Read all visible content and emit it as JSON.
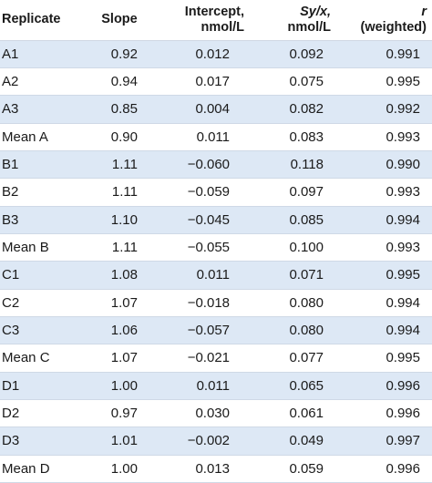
{
  "table": {
    "headers": {
      "replicate": "Replicate",
      "slope": "Slope",
      "intercept_line1": "Intercept,",
      "intercept_line2": "nmol/L",
      "syx_line1": "Sy/x,",
      "syx_line2": "nmol/L",
      "r_line1": "r",
      "r_line2": "(weighted)"
    },
    "rows": [
      {
        "replicate": "A1",
        "slope": "0.92",
        "intercept": "0.012",
        "syx": "0.092",
        "r": "0.991"
      },
      {
        "replicate": "A2",
        "slope": "0.94",
        "intercept": "0.017",
        "syx": "0.075",
        "r": "0.995"
      },
      {
        "replicate": "A3",
        "slope": "0.85",
        "intercept": "0.004",
        "syx": "0.082",
        "r": "0.992"
      },
      {
        "replicate": "Mean A",
        "slope": "0.90",
        "intercept": "0.011",
        "syx": "0.083",
        "r": "0.993"
      },
      {
        "replicate": "B1",
        "slope": "1.11",
        "intercept": "−0.060",
        "syx": "0.118",
        "r": "0.990"
      },
      {
        "replicate": "B2",
        "slope": "1.11",
        "intercept": "−0.059",
        "syx": "0.097",
        "r": "0.993"
      },
      {
        "replicate": "B3",
        "slope": "1.10",
        "intercept": "−0.045",
        "syx": "0.085",
        "r": "0.994"
      },
      {
        "replicate": "Mean B",
        "slope": "1.11",
        "intercept": "−0.055",
        "syx": "0.100",
        "r": "0.993"
      },
      {
        "replicate": "C1",
        "slope": "1.08",
        "intercept": "0.011",
        "syx": "0.071",
        "r": "0.995"
      },
      {
        "replicate": "C2",
        "slope": "1.07",
        "intercept": "−0.018",
        "syx": "0.080",
        "r": "0.994"
      },
      {
        "replicate": "C3",
        "slope": "1.06",
        "intercept": "−0.057",
        "syx": "0.080",
        "r": "0.994"
      },
      {
        "replicate": "Mean C",
        "slope": "1.07",
        "intercept": "−0.021",
        "syx": "0.077",
        "r": "0.995"
      },
      {
        "replicate": "D1",
        "slope": "1.00",
        "intercept": "0.011",
        "syx": "0.065",
        "r": "0.996"
      },
      {
        "replicate": "D2",
        "slope": "0.97",
        "intercept": "0.030",
        "syx": "0.061",
        "r": "0.996"
      },
      {
        "replicate": "D3",
        "slope": "1.01",
        "intercept": "−0.002",
        "syx": "0.049",
        "r": "0.997"
      },
      {
        "replicate": "Mean D",
        "slope": "1.00",
        "intercept": "0.013",
        "syx": "0.059",
        "r": "0.996"
      }
    ]
  }
}
